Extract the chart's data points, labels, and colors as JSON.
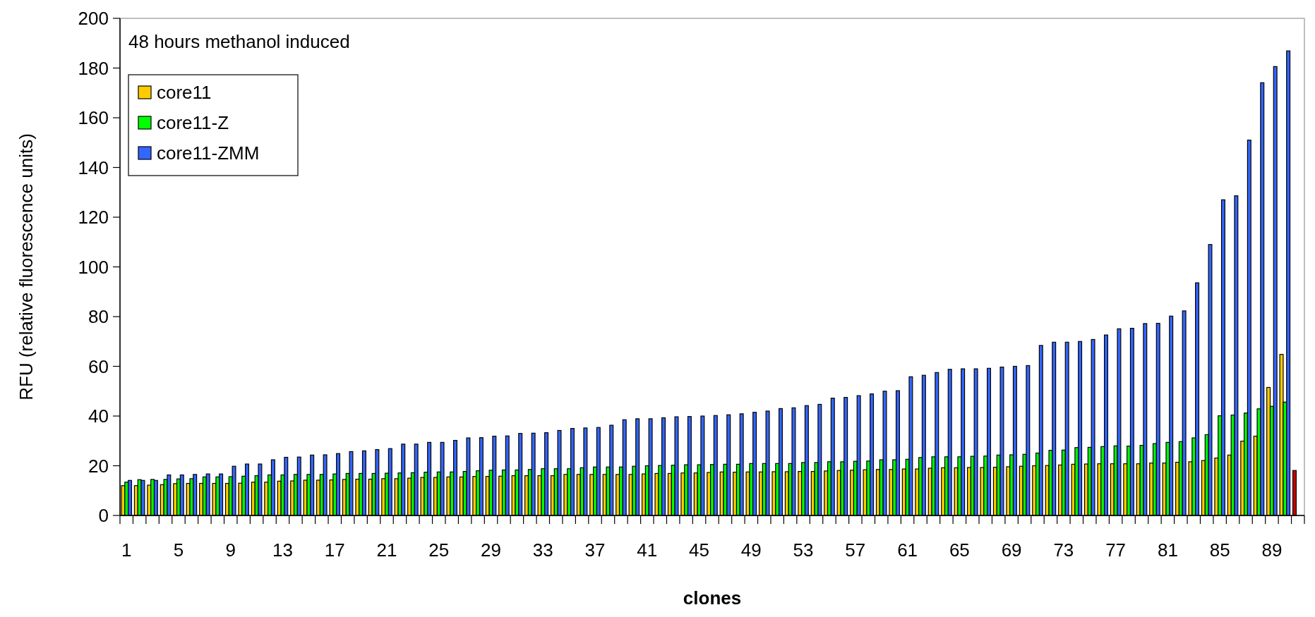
{
  "chart_data": {
    "type": "bar",
    "xlabel": "clones",
    "ylabel": "RFU (relative fluorescence units)",
    "annotations": [
      "48 hours methanol induced"
    ],
    "categories": [
      "1",
      null,
      null,
      null,
      "5",
      null,
      null,
      null,
      "9",
      null,
      null,
      null,
      "13",
      null,
      null,
      null,
      "17",
      null,
      null,
      null,
      "21",
      null,
      null,
      null,
      "25",
      null,
      null,
      null,
      "29",
      null,
      null,
      null,
      "33",
      null,
      null,
      null,
      "37",
      null,
      null,
      null,
      "41",
      null,
      null,
      null,
      "45",
      null,
      null,
      null,
      "49",
      null,
      null,
      null,
      "53",
      null,
      null,
      null,
      "57",
      null,
      null,
      null,
      "61",
      null,
      null,
      null,
      "65",
      null,
      null,
      null,
      "69",
      null,
      null,
      null,
      "73",
      null,
      null,
      null,
      "77",
      null,
      null,
      null,
      "81",
      null,
      null,
      null,
      "85",
      null,
      null,
      null,
      "89",
      null,
      null
    ],
    "series": [
      {
        "name": "core11",
        "color": "#ffcc00",
        "colors": [
          "#ffcc00",
          "#ffcc00",
          "#ffcc00",
          "#ffcc00",
          "#ffcc00",
          "#ffcc00",
          "#ffcc00",
          "#ffcc00",
          "#ffcc00",
          "#ffcc00",
          "#ffcc00",
          "#ffcc00",
          "#ffcc00",
          "#ffcc00",
          "#ffcc00",
          "#ffcc00",
          "#ffcc00",
          "#ffcc00",
          "#ffcc00",
          "#ffcc00",
          "#ffcc00",
          "#ffcc00",
          "#ffcc00",
          "#ffcc00",
          "#ffcc00",
          "#ffcc00",
          "#ffcc00",
          "#ffcc00",
          "#ffcc00",
          "#ffcc00",
          "#ffcc00",
          "#ffcc00",
          "#ffcc00",
          "#ffcc00",
          "#ffcc00",
          "#ffcc00",
          "#ffcc00",
          "#ffcc00",
          "#ffcc00",
          "#ffcc00",
          "#ffcc00",
          "#ffcc00",
          "#ffcc00",
          "#ffcc00",
          "#ffcc00",
          "#ffcc00",
          "#ffcc00",
          "#ffcc00",
          "#ffcc00",
          "#ffcc00",
          "#ffcc00",
          "#ffcc00",
          "#ffcc00",
          "#ffcc00",
          "#ffcc00",
          "#ffcc00",
          "#ffcc00",
          "#ffcc00",
          "#ffcc00",
          "#ffcc00",
          "#ffcc00",
          "#ffcc00",
          "#ffcc00",
          "#ffcc00",
          "#ffcc00",
          "#ffcc00",
          "#ffcc00",
          "#ffcc00",
          "#ffcc00",
          "#ffcc00",
          "#ffcc00",
          "#ffcc00",
          "#ffcc00",
          "#ffcc00",
          "#ffcc00",
          "#ffcc00",
          "#ffcc00",
          "#ffcc00",
          "#ffcc00",
          "#ffcc00",
          "#ffcc00",
          "#ffcc00",
          "#ffcc00",
          "#ffcc00",
          "#ffcc00",
          "#ffcc00",
          "#ffcc00",
          "#ffcc00",
          "#ffcc00",
          "#ffcc00",
          "#cc0000"
        ],
        "values": [
          12.0,
          12.0,
          12.2,
          12.4,
          12.8,
          12.9,
          12.9,
          12.9,
          12.9,
          13.0,
          13.4,
          13.4,
          13.8,
          13.9,
          14.2,
          14.2,
          14.3,
          14.5,
          14.6,
          14.6,
          14.8,
          14.8,
          15.0,
          15.3,
          15.3,
          15.5,
          15.5,
          15.7,
          15.7,
          15.8,
          16.0,
          16.0,
          16.0,
          16.0,
          16.5,
          16.5,
          16.5,
          16.5,
          16.5,
          16.5,
          16.7,
          16.9,
          16.9,
          17.1,
          17.1,
          17.3,
          17.5,
          17.4,
          17.5,
          17.5,
          17.6,
          17.6,
          17.7,
          17.7,
          17.9,
          18.1,
          18.2,
          18.4,
          18.5,
          18.5,
          18.7,
          18.7,
          19.0,
          19.2,
          19.2,
          19.3,
          19.3,
          19.4,
          19.6,
          19.8,
          20.0,
          20.1,
          20.3,
          20.6,
          20.7,
          20.8,
          20.8,
          20.8,
          20.8,
          21.1,
          21.1,
          21.4,
          21.6,
          22.1,
          23.1,
          24.3,
          29.9,
          31.9,
          51.5,
          64.8,
          18.1
        ]
      },
      {
        "name": "core11-Z",
        "color": "#00ff00",
        "values": [
          13.4,
          14.4,
          14.5,
          14.5,
          14.7,
          14.8,
          15.5,
          15.5,
          15.6,
          15.8,
          16.0,
          16.3,
          16.3,
          16.5,
          16.5,
          16.5,
          16.7,
          16.9,
          16.9,
          16.9,
          17.0,
          17.1,
          17.2,
          17.4,
          17.5,
          17.5,
          17.7,
          18.0,
          18.2,
          18.3,
          18.3,
          18.5,
          18.8,
          18.8,
          18.8,
          19.2,
          19.5,
          19.5,
          19.5,
          19.8,
          20.0,
          20.1,
          20.2,
          20.4,
          20.4,
          20.5,
          20.6,
          20.6,
          20.9,
          20.9,
          20.9,
          20.9,
          21.3,
          21.3,
          21.6,
          21.6,
          21.8,
          21.9,
          22.4,
          22.4,
          22.6,
          23.3,
          23.6,
          23.6,
          23.6,
          23.8,
          23.9,
          24.3,
          24.4,
          24.6,
          25.1,
          26.2,
          26.3,
          27.3,
          27.4,
          27.7,
          28.0,
          27.9,
          28.2,
          28.9,
          29.4,
          29.7,
          31.2,
          32.5,
          40.1,
          40.4,
          41.2,
          42.9,
          43.9,
          45.6,
          null
        ]
      },
      {
        "name": "core11-ZMM",
        "color": "#3366ff",
        "values": [
          14.1,
          14.1,
          14.1,
          16.3,
          16.3,
          16.5,
          16.7,
          16.7,
          19.8,
          20.7,
          20.7,
          22.4,
          23.4,
          23.5,
          24.3,
          24.4,
          24.9,
          25.7,
          26.0,
          26.5,
          26.9,
          28.7,
          28.7,
          29.4,
          29.4,
          30.2,
          31.2,
          31.3,
          31.9,
          32.0,
          33.0,
          33.1,
          33.3,
          34.2,
          35.0,
          35.2,
          35.4,
          36.3,
          38.5,
          38.9,
          38.9,
          39.3,
          39.7,
          39.8,
          40.0,
          40.2,
          40.5,
          40.9,
          41.5,
          42.0,
          43.0,
          43.3,
          44.2,
          44.7,
          47.2,
          47.5,
          48.2,
          48.9,
          50.0,
          50.2,
          55.8,
          56.4,
          57.5,
          58.8,
          59.0,
          59.0,
          59.2,
          59.7,
          60.0,
          60.3,
          68.4,
          69.7,
          69.7,
          70.0,
          70.8,
          72.6,
          75.1,
          75.3,
          77.2,
          77.3,
          80.2,
          82.3,
          93.6,
          109.0,
          127.0,
          128.6,
          151.0,
          174.1,
          180.6,
          186.9,
          null
        ]
      }
    ],
    "ylim": [
      0,
      200
    ],
    "yticks": [
      0,
      20,
      40,
      60,
      80,
      100,
      120,
      140,
      160,
      180,
      200
    ],
    "grid": false,
    "legend": "top left"
  }
}
